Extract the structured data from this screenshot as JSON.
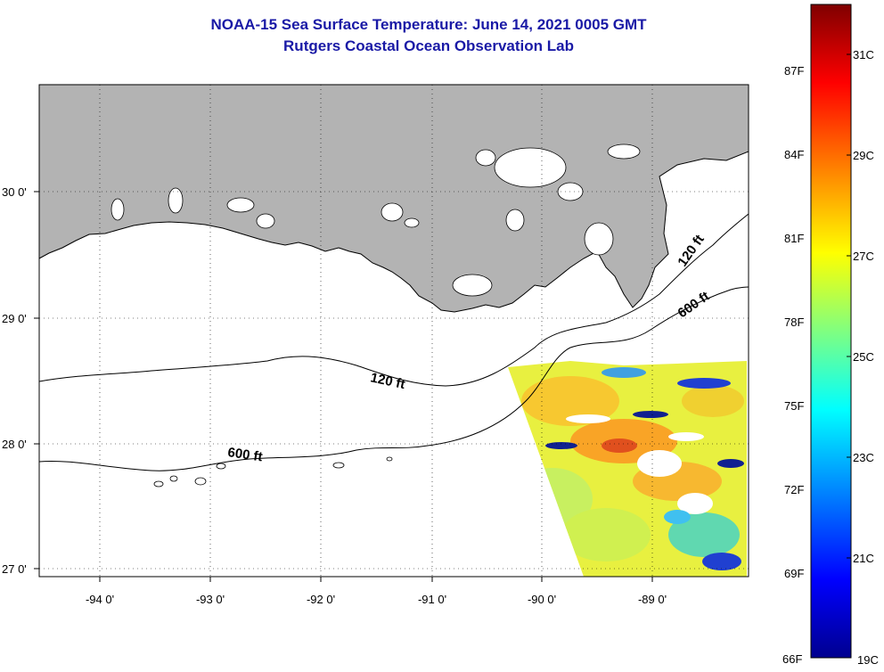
{
  "title": {
    "line1": "NOAA-15 Sea Surface Temperature:  June 14, 2021 0005 GMT",
    "line2": "Rutgers Coastal Ocean Observation Lab"
  },
  "colors": {
    "title": "#1a1aa6",
    "land": "#b3b3b3",
    "ocean": "#ffffff",
    "coast": "#000000"
  },
  "map": {
    "lat_labels": [
      "30 0'",
      "29 0'",
      "28 0'",
      "27 0'"
    ],
    "lon_labels": [
      "-94 0'",
      "-93 0'",
      "-92 0'",
      "-91 0'",
      "-90 0'",
      "-89 0'"
    ],
    "isobath_labels": [
      {
        "id": "iso-120-west",
        "text": "120 ft"
      },
      {
        "id": "iso-600-west",
        "text": "600 ft"
      },
      {
        "id": "iso-120-east",
        "text": "120 ft"
      },
      {
        "id": "iso-600-east",
        "text": "600 ft"
      }
    ],
    "grid": "dotted"
  },
  "colorbar": {
    "fahrenheit_labels": [
      "87F",
      "84F",
      "81F",
      "78F",
      "75F",
      "72F",
      "69F",
      "66F"
    ],
    "celsius_labels": [
      "31C",
      "29C",
      "27C",
      "25C",
      "23C",
      "21C",
      "19C"
    ],
    "gradient": [
      "#7f0000",
      "#ff0000",
      "#ff8000",
      "#ffff00",
      "#80ff80",
      "#00ffff",
      "#0080ff",
      "#0000ff",
      "#00008f"
    ]
  }
}
